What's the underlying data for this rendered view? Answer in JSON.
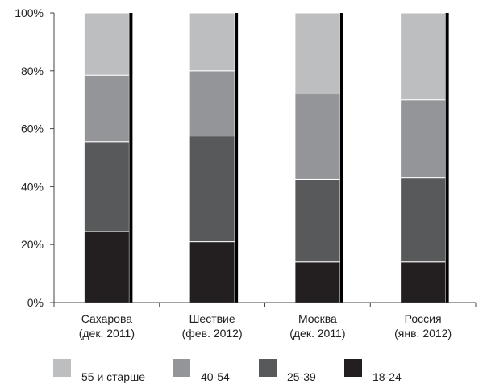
{
  "chart_data": {
    "type": "bar",
    "stacked": true,
    "title": "",
    "xlabel": "",
    "ylabel": "",
    "ylim": [
      0,
      100
    ],
    "y_ticks": [
      "0%",
      "20%",
      "40%",
      "60%",
      "80%",
      "100%"
    ],
    "grid": false,
    "legend_position": "bottom",
    "categories": [
      [
        "Сахарова",
        "(дек. 2011)"
      ],
      [
        "Шествие",
        "(фев. 2012)"
      ],
      [
        "Москва",
        "(дек. 2011)"
      ],
      [
        "Россия",
        "(янв. 2012)"
      ]
    ],
    "series": [
      {
        "name": "18-24",
        "color": "#231f20",
        "values": [
          24.5,
          21,
          14,
          14
        ]
      },
      {
        "name": "25-39",
        "color": "#58595b",
        "values": [
          31,
          36.5,
          28.5,
          29
        ]
      },
      {
        "name": "40-54",
        "color": "#939598",
        "values": [
          23,
          22.5,
          29.5,
          27
        ]
      },
      {
        "name": "55 и старше",
        "color": "#bcbec0",
        "values": [
          21.5,
          20,
          28,
          30
        ]
      }
    ],
    "legend_order": [
      "55 и старше",
      "40-54",
      "25-39",
      "18-24"
    ]
  }
}
